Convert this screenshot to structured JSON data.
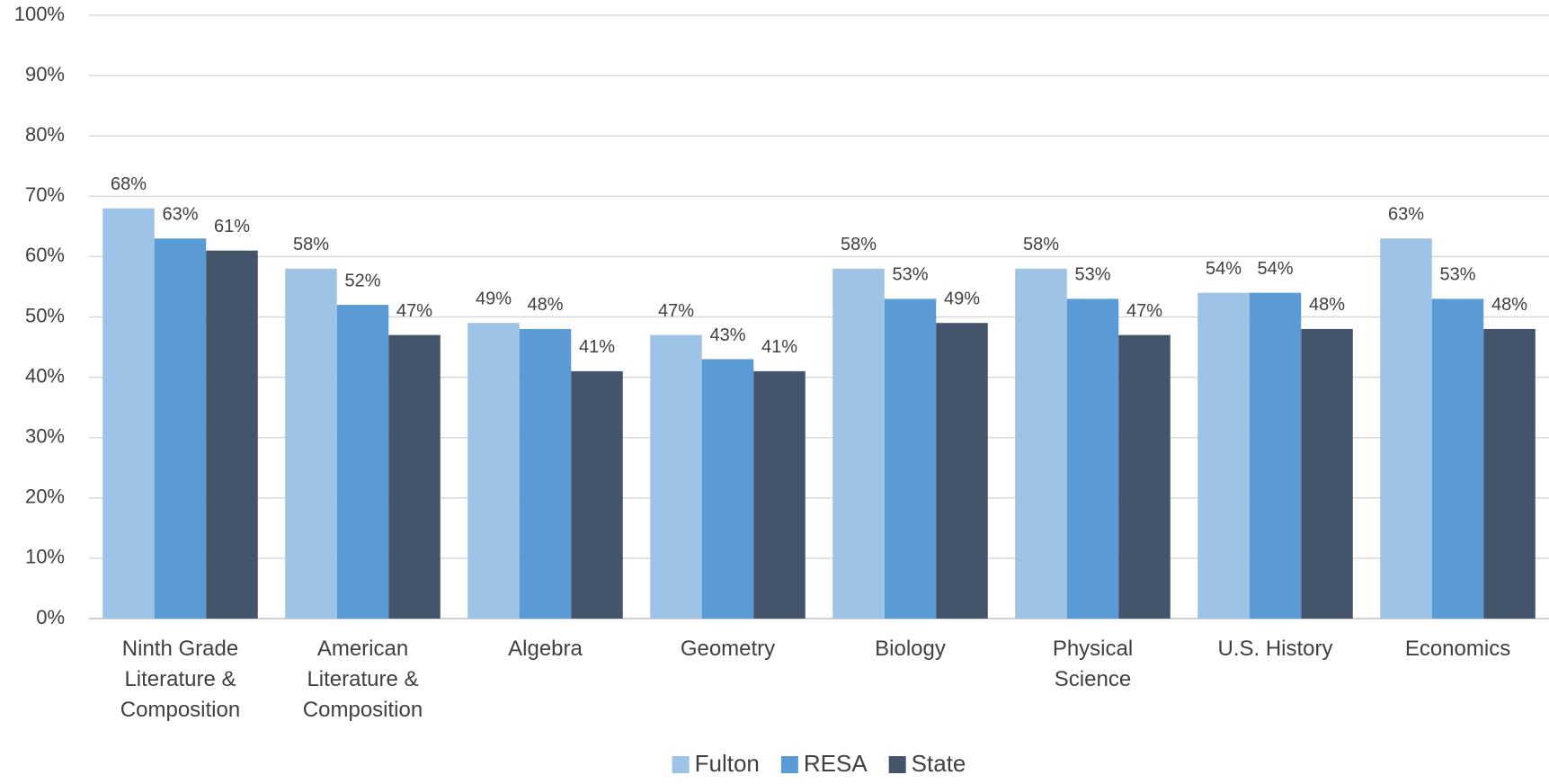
{
  "chart_data": {
    "type": "bar",
    "categories": [
      "Ninth Grade Literature & Composition",
      "American Literature & Composition",
      "Algebra",
      "Geometry",
      "Biology",
      "Physical Science",
      "U.S. History",
      "Economics"
    ],
    "series": [
      {
        "name": "Fulton",
        "color": "#9dc3e6",
        "values": [
          68,
          58,
          49,
          47,
          58,
          58,
          54,
          63
        ],
        "value_labels": [
          "68%",
          "58%",
          "49%",
          "47%",
          "58%",
          "58%",
          "54%",
          "63%"
        ]
      },
      {
        "name": "RESA",
        "color": "#5b9bd5",
        "values": [
          63,
          52,
          48,
          43,
          53,
          53,
          54,
          53
        ],
        "value_labels": [
          "63%",
          "52%",
          "48%",
          "43%",
          "53%",
          "53%",
          "54%",
          "53%"
        ]
      },
      {
        "name": "State",
        "color": "#44546a",
        "values": [
          61,
          47,
          41,
          41,
          49,
          47,
          48,
          48
        ],
        "value_labels": [
          "61%",
          "47%",
          "41%",
          "41%",
          "49%",
          "47%",
          "48%",
          "48%"
        ]
      }
    ],
    "ylim": [
      0,
      100
    ],
    "yticks": [
      {
        "value": 0,
        "label": "0%"
      },
      {
        "value": 10,
        "label": "10%"
      },
      {
        "value": 20,
        "label": "20%"
      },
      {
        "value": 30,
        "label": "30%"
      },
      {
        "value": 40,
        "label": "40%"
      },
      {
        "value": 50,
        "label": "50%"
      },
      {
        "value": 60,
        "label": "60%"
      },
      {
        "value": 70,
        "label": "70%"
      },
      {
        "value": 80,
        "label": "80%"
      },
      {
        "value": 90,
        "label": "90%"
      },
      {
        "value": 100,
        "label": "100%"
      }
    ],
    "grid": true,
    "legend": "bottom"
  }
}
